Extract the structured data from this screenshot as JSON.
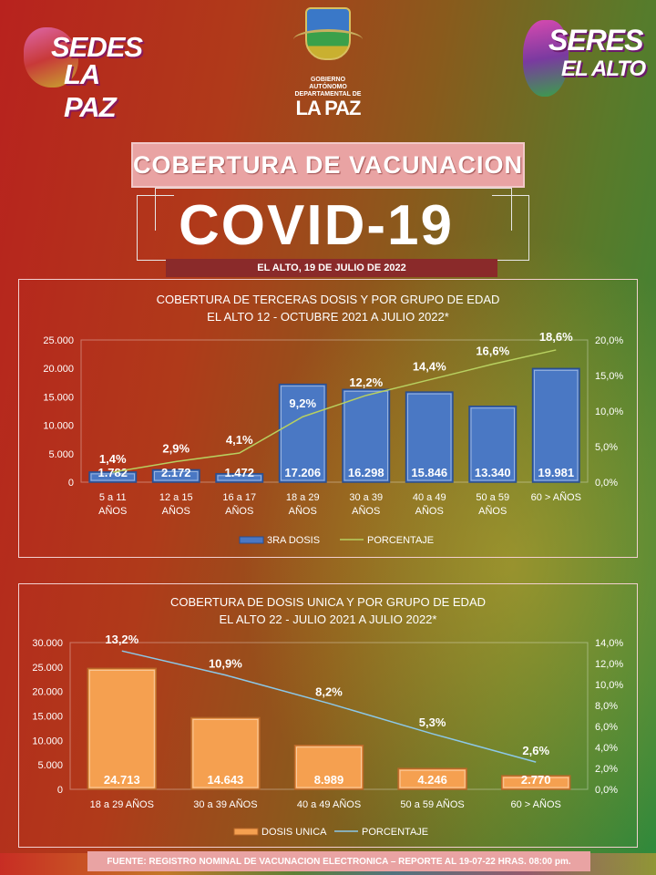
{
  "logos": {
    "left_line1": "SEDES",
    "left_line2": "LA PAZ",
    "right_line1": "SERES",
    "right_line2": "EL ALTO",
    "center_line1": "GOBIERNO AUTÓNOMO",
    "center_line2": "DEPARTAMENTAL DE",
    "center_line3": "LA PAZ"
  },
  "header": {
    "title": "COBERTURA DE VACUNACION",
    "covid_label": "COVID-19",
    "date_line": "EL ALTO, 19 DE JULIO DE 2022"
  },
  "footer": {
    "source": "FUENTE: REGISTRO NOMINAL DE VACUNACION ELECTRONICA – REPORTE AL 19-07-22 HRAS. 08:00 pm."
  },
  "colors": {
    "bar_blue": "#4a78c4",
    "bar_orange": "#f5a050",
    "line_green": "#b8d060",
    "line_blue": "#8cc8e8"
  },
  "chart_data": [
    {
      "type": "bar",
      "title": "COBERTURA DE TERCERAS DOSIS  Y POR GRUPO DE EDAD",
      "subtitle": "EL ALTO 12 - OCTUBRE 2021 A JULIO 2022*",
      "categories": [
        [
          "5 a 11",
          "AÑOS"
        ],
        [
          "12 a 15",
          "AÑOS"
        ],
        [
          "16 a 17",
          "AÑOS"
        ],
        [
          "18 a 29",
          "AÑOS"
        ],
        [
          "30 a 39",
          "AÑOS"
        ],
        [
          "40 a 49",
          "AÑOS"
        ],
        [
          "50 a 59",
          "AÑOS"
        ],
        [
          "60 > AÑOS",
          ""
        ]
      ],
      "series": [
        {
          "name": "3RA DOSIS",
          "type": "bar",
          "axis": "left",
          "values": [
            1782,
            2172,
            1472,
            17206,
            16298,
            15846,
            13340,
            19981
          ],
          "labels": [
            "1.782",
            "2.172",
            "1.472",
            "17.206",
            "16.298",
            "15.846",
            "13.340",
            "19.981"
          ]
        },
        {
          "name": "PORCENTAJE",
          "type": "line",
          "axis": "right",
          "values": [
            1.4,
            2.9,
            4.1,
            9.2,
            12.2,
            14.4,
            16.6,
            18.6
          ],
          "labels": [
            "1,4%",
            "2,9%",
            "4,1%",
            "9,2%",
            "12,2%",
            "14,4%",
            "16,6%",
            "18,6%"
          ]
        }
      ],
      "ylim": [
        0,
        25000
      ],
      "y_ticks": [
        "0",
        "5.000",
        "10.000",
        "15.000",
        "20.000",
        "25.000"
      ],
      "y2lim": [
        0,
        20
      ],
      "y2_ticks": [
        "0,0%",
        "5,0%",
        "10,0%",
        "15,0%",
        "20,0%"
      ],
      "legend": "bottom"
    },
    {
      "type": "bar",
      "title": "COBERTURA DE DOSIS UNICA  Y POR GRUPO DE EDAD",
      "subtitle": "EL ALTO 22 - JULIO 2021 A  JULIO 2022*",
      "categories": [
        [
          "18 a 29 AÑOS"
        ],
        [
          "30 a 39 AÑOS"
        ],
        [
          "40 a 49 AÑOS"
        ],
        [
          "50 a 59 AÑOS"
        ],
        [
          "60 > AÑOS"
        ]
      ],
      "series": [
        {
          "name": "DOSIS UNICA",
          "type": "bar",
          "axis": "left",
          "values": [
            24713,
            14643,
            8989,
            4246,
            2770
          ],
          "labels": [
            "24.713",
            "14.643",
            "8.989",
            "4.246",
            "2.770"
          ]
        },
        {
          "name": "PORCENTAJE",
          "type": "line",
          "axis": "right",
          "values": [
            13.2,
            10.9,
            8.2,
            5.3,
            2.6
          ],
          "labels": [
            "13,2%",
            "10,9%",
            "8,2%",
            "5,3%",
            "2,6%"
          ]
        }
      ],
      "ylim": [
        0,
        30000
      ],
      "y_ticks": [
        "0",
        "5.000",
        "10.000",
        "15.000",
        "20.000",
        "25.000",
        "30.000"
      ],
      "y2lim": [
        0,
        14
      ],
      "y2_ticks": [
        "0,0%",
        "2,0%",
        "4,0%",
        "6,0%",
        "8,0%",
        "10,0%",
        "12,0%",
        "14,0%"
      ],
      "legend": "bottom"
    }
  ]
}
